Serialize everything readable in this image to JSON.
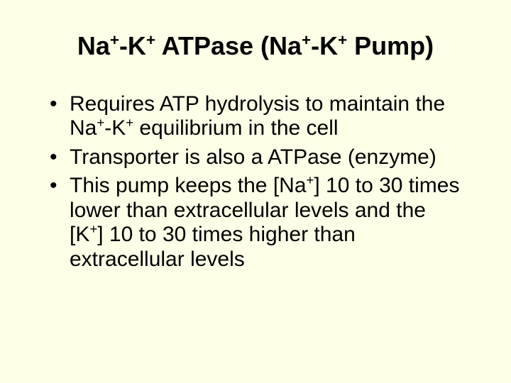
{
  "background_color": "#feffe7",
  "text_color": "#000000",
  "font_family": "Comic Sans MS",
  "title": {
    "fontsize": 36,
    "weight": "bold",
    "align": "center",
    "parts": {
      "p1": "Na",
      "p2": "+",
      "p3": "-K",
      "p4": "+",
      "p5": " ATPase (Na",
      "p6": "+",
      "p7": "-K",
      "p8": "+",
      "p9": " Pump)"
    }
  },
  "bullets": {
    "fontsize": 30,
    "items": [
      {
        "p1": "Requires ATP hydrolysis to maintain the Na",
        "p2": "+",
        "p3": "-K",
        "p4": "+",
        "p5": " equilibrium in the cell"
      },
      {
        "p1": "Transporter is also a ATPase (enzyme)"
      },
      {
        "p1": "This pump keeps the [Na",
        "p2": "+",
        "p3": "] 10 to 30 times lower than extracellular levels and the [K",
        "p4": "+",
        "p5": "] 10 to 30 times higher than extracellular levels"
      }
    ]
  }
}
